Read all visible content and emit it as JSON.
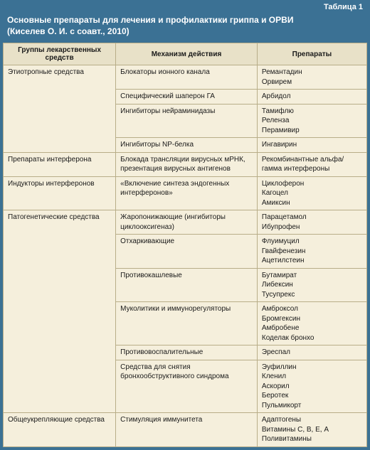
{
  "table_number": "Таблица 1",
  "title_l1": "Основные препараты для лечения и профилактики гриппа и ОРВИ",
  "title_l2": "(Киселев О. И. с соавт., 2010)",
  "headers": {
    "group": "Группы лекарственных средств",
    "mech": "Механизм действия",
    "drugs": "Препараты"
  },
  "rows": [
    {
      "group": "Этиотропные средства",
      "mech": "Блокаторы ионного канала",
      "drugs": "Ремантадин\nОрвирем"
    },
    {
      "group": "",
      "mech": "Специфический шаперон ГА",
      "drugs": "Арбидол"
    },
    {
      "group": "",
      "mech": "Ингибиторы нейраминидазы",
      "drugs": "Тамифлю\nРеленза\nПерамивир"
    },
    {
      "group": "",
      "mech": "Ингибиторы NP-белка",
      "drugs": "Ингавирин"
    },
    {
      "group": "Препараты интерферона",
      "mech": "Блокада трансляции вирусных мРНК, презентация вирусных антигенов",
      "drugs": "Рекомбинантные альфа/гамма интерфероны"
    },
    {
      "group": "Индукторы интерферонов",
      "mech": "«Включение синтеза эндогенных интерферонов»",
      "drugs": "Циклоферон\nКагоцел\nАмиксин"
    },
    {
      "group": "Патогенетические средства",
      "mech": "Жаропонижающие (ингибиторы циклооксигеназ)",
      "drugs": "Парацетамол\nИбупрофен"
    },
    {
      "group": "",
      "mech": "Отхаркивающие",
      "drugs": "Флуимуцил\nГвайфенезин\nАцетилстеин"
    },
    {
      "group": "",
      "mech": "Противокашлевые",
      "drugs": "Бутамират\nЛибексин\nТусупрекс"
    },
    {
      "group": "",
      "mech": "Муколитики и иммунорегуляторы",
      "drugs": "Амброксол\nБромгексин\nАмбробене\nКоделак бронхо"
    },
    {
      "group": "",
      "mech": "Противовоспалительные",
      "drugs": "Эреспал"
    },
    {
      "group": "",
      "mech": "Средства для снятия бронхообструктивного синдрома",
      "drugs": "Эуфиллин\nКленил\nАскорил\nБеротек\nПульмикорт"
    },
    {
      "group": "Общеукрепляющие средства",
      "mech": "Стимуляция иммунитета",
      "drugs": "Адаптогены\nВитамины С, В, Е, А\nПоливитамины"
    }
  ],
  "group_span_map": [
    4,
    0,
    0,
    0,
    1,
    1,
    6,
    0,
    0,
    0,
    0,
    0,
    1
  ],
  "colors": {
    "header_bg": "#3b7194",
    "header_text": "#ffffff",
    "table_bg": "#f5efdc",
    "th_bg": "#e8e1c8",
    "border": "#b8ad88",
    "text": "#1a1a1a"
  }
}
